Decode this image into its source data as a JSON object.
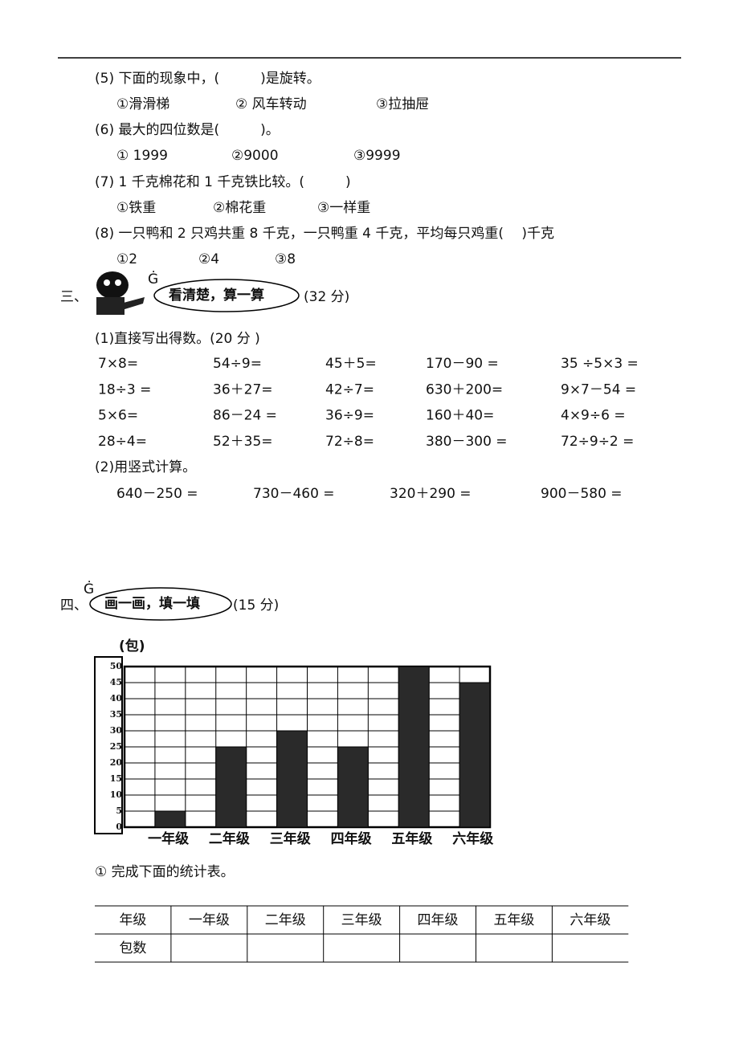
{
  "questions": [
    {
      "stem": "(5)  下面的现象中，(　　　)是旋转。",
      "options": [
        "①滑滑梯",
        "②  风车转动",
        "③拉抽屉"
      ]
    },
    {
      "stem": "(6)  最大的四位数是(　　　)。",
      "options": [
        "①  1999",
        "②9000",
        "③9999"
      ]
    },
    {
      "stem": "(7) 1 千克棉花和 1 千克铁比较。(　　　)",
      "options": [
        "①铁重",
        "②棉花重",
        "③一样重"
      ]
    },
    {
      "stem": "(8)  一只鸭和 2 只鸡共重 8 千克，一只鸭重 4 千克，平均每只鸡重(　 )千克",
      "options": [
        "①2",
        "②4",
        "③8"
      ]
    }
  ],
  "section3": {
    "number": "三、",
    "mark": "Ġ",
    "title": "看清楚，算一算",
    "score": "(32 分)",
    "part1": {
      "title": "(1)直接写出得数。(20 分 )",
      "rows": [
        [
          "7×8=",
          "54÷9=",
          "45＋5=",
          "170－90 =",
          "35  ÷5×3 ="
        ],
        [
          "18÷3 =",
          "36＋27=",
          "42÷7=",
          "630＋200=",
          "9×7－54 ="
        ],
        [
          "5×6=",
          "86－24 =",
          "36÷9=",
          "160＋40=",
          "4×9÷6 ="
        ],
        [
          "28÷4=",
          "52＋35=",
          "72÷8=",
          "380－300 =",
          "72÷9÷2 ="
        ]
      ]
    },
    "part2": {
      "title": "(2)用竖式计算。",
      "items": [
        "640－250 =",
        "730－460 =",
        "320＋290 =",
        "900－580 ="
      ]
    }
  },
  "section4": {
    "number": "四、",
    "mark": "Ġ",
    "title": "画一画，填一填",
    "score": "(15 分)",
    "task": "①  完成下面的统计表。",
    "table": {
      "header": [
        "年级",
        "一年级",
        "二年级",
        "三年级",
        "四年级",
        "五年级",
        "六年级"
      ],
      "row_label": "包数"
    }
  },
  "chart_data": {
    "type": "bar",
    "y_label": "(包)",
    "categories": [
      "一年级",
      "二年级",
      "三年级",
      "四年级",
      "五年级",
      "六年级"
    ],
    "values": [
      5,
      25,
      30,
      25,
      50,
      45
    ],
    "color": "#2a2a2a",
    "ylim": [
      0,
      50
    ],
    "yticks": [
      0,
      5,
      10,
      15,
      20,
      25,
      30,
      35,
      40,
      45,
      50
    ],
    "grid": true
  }
}
